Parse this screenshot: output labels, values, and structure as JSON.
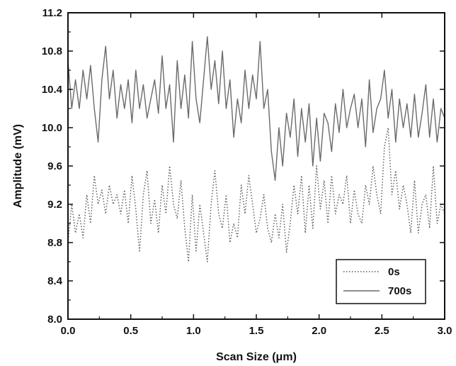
{
  "chart_data": {
    "type": "line",
    "title": "",
    "xlabel": "Scan Size (μm)",
    "ylabel": "Amplitude (mV)",
    "xlim": [
      0.0,
      3.0
    ],
    "ylim": [
      8.0,
      11.2
    ],
    "xticks": [
      "0.0",
      "0.5",
      "1.0",
      "1.5",
      "2.0",
      "2.5",
      "3.0"
    ],
    "yticks": [
      "8.0",
      "8.4",
      "8.8",
      "9.2",
      "9.6",
      "10.0",
      "10.4",
      "10.8",
      "11.2"
    ],
    "legend_position": "bottom-right",
    "grid": false,
    "colors": {
      "series_0s": "#555555",
      "series_700s": "#6a6a6a",
      "axis": "#111111"
    },
    "series": [
      {
        "name": "0s",
        "style": "dotted",
        "x": [
          0.0,
          0.03,
          0.06,
          0.09,
          0.12,
          0.15,
          0.18,
          0.21,
          0.24,
          0.27,
          0.3,
          0.33,
          0.36,
          0.39,
          0.42,
          0.45,
          0.48,
          0.51,
          0.54,
          0.57,
          0.6,
          0.63,
          0.66,
          0.69,
          0.72,
          0.75,
          0.78,
          0.81,
          0.84,
          0.87,
          0.9,
          0.93,
          0.96,
          0.99,
          1.02,
          1.05,
          1.08,
          1.11,
          1.14,
          1.17,
          1.2,
          1.23,
          1.26,
          1.29,
          1.32,
          1.35,
          1.38,
          1.41,
          1.44,
          1.47,
          1.5,
          1.53,
          1.56,
          1.59,
          1.62,
          1.65,
          1.68,
          1.71,
          1.74,
          1.77,
          1.8,
          1.83,
          1.86,
          1.89,
          1.92,
          1.95,
          1.98,
          2.01,
          2.04,
          2.07,
          2.1,
          2.13,
          2.16,
          2.19,
          2.22,
          2.25,
          2.28,
          2.31,
          2.34,
          2.37,
          2.4,
          2.43,
          2.46,
          2.49,
          2.52,
          2.55,
          2.58,
          2.61,
          2.64,
          2.67,
          2.7,
          2.73,
          2.76,
          2.79,
          2.82,
          2.85,
          2.88,
          2.91,
          2.94,
          2.97,
          3.0
        ],
        "y": [
          8.8,
          9.2,
          8.9,
          9.1,
          8.85,
          9.3,
          9.0,
          9.5,
          9.2,
          9.35,
          9.1,
          9.4,
          9.2,
          9.3,
          9.1,
          9.35,
          9.0,
          9.5,
          9.15,
          8.7,
          9.3,
          9.55,
          9.0,
          9.25,
          8.9,
          9.4,
          9.1,
          9.6,
          9.2,
          9.05,
          9.45,
          8.95,
          8.6,
          9.3,
          8.7,
          9.2,
          8.9,
          8.6,
          9.2,
          9.55,
          9.1,
          8.95,
          9.3,
          8.8,
          9.0,
          8.85,
          9.4,
          9.1,
          9.5,
          9.2,
          8.9,
          9.05,
          9.3,
          8.95,
          8.8,
          9.1,
          8.85,
          9.2,
          8.7,
          9.0,
          9.4,
          9.1,
          9.5,
          8.9,
          9.4,
          8.95,
          9.6,
          9.15,
          9.45,
          9.0,
          9.5,
          9.1,
          9.3,
          9.2,
          9.5,
          9.0,
          9.35,
          9.1,
          9.0,
          9.4,
          9.2,
          9.6,
          9.3,
          9.1,
          9.8,
          10.0,
          9.3,
          9.55,
          9.15,
          9.4,
          9.2,
          8.9,
          9.45,
          8.9,
          9.2,
          9.3,
          8.95,
          9.6,
          9.0,
          9.2,
          9.1
        ]
      },
      {
        "name": "700s",
        "style": "solid",
        "x": [
          0.0,
          0.03,
          0.06,
          0.09,
          0.12,
          0.15,
          0.18,
          0.21,
          0.24,
          0.27,
          0.3,
          0.33,
          0.36,
          0.39,
          0.42,
          0.45,
          0.48,
          0.51,
          0.54,
          0.57,
          0.6,
          0.63,
          0.66,
          0.69,
          0.72,
          0.75,
          0.78,
          0.81,
          0.84,
          0.87,
          0.9,
          0.93,
          0.96,
          0.99,
          1.02,
          1.05,
          1.08,
          1.11,
          1.14,
          1.17,
          1.2,
          1.23,
          1.26,
          1.29,
          1.32,
          1.35,
          1.38,
          1.41,
          1.44,
          1.47,
          1.5,
          1.53,
          1.56,
          1.59,
          1.62,
          1.65,
          1.68,
          1.71,
          1.74,
          1.77,
          1.8,
          1.83,
          1.86,
          1.89,
          1.92,
          1.95,
          1.98,
          2.01,
          2.04,
          2.07,
          2.1,
          2.13,
          2.16,
          2.19,
          2.22,
          2.25,
          2.28,
          2.31,
          2.34,
          2.37,
          2.4,
          2.43,
          2.46,
          2.49,
          2.52,
          2.55,
          2.58,
          2.61,
          2.64,
          2.67,
          2.7,
          2.73,
          2.76,
          2.79,
          2.82,
          2.85,
          2.88,
          2.91,
          2.94,
          2.97,
          3.0
        ],
        "y": [
          10.7,
          10.2,
          10.5,
          10.2,
          10.6,
          10.3,
          10.65,
          10.2,
          9.85,
          10.5,
          10.85,
          10.3,
          10.6,
          10.1,
          10.45,
          10.2,
          10.5,
          10.05,
          10.6,
          10.2,
          10.45,
          10.1,
          10.3,
          10.5,
          10.15,
          10.75,
          10.2,
          10.45,
          9.85,
          10.7,
          10.2,
          10.55,
          10.1,
          10.9,
          10.3,
          10.05,
          10.5,
          10.95,
          10.4,
          10.7,
          10.25,
          10.8,
          10.2,
          10.5,
          9.9,
          10.3,
          10.05,
          10.6,
          10.2,
          10.55,
          10.3,
          10.9,
          10.2,
          10.4,
          9.75,
          9.45,
          10.0,
          9.6,
          10.15,
          9.9,
          10.3,
          9.7,
          10.2,
          9.85,
          10.25,
          9.6,
          10.1,
          9.65,
          10.15,
          10.05,
          9.75,
          10.25,
          9.95,
          10.4,
          10.0,
          10.2,
          10.35,
          10.0,
          10.3,
          9.8,
          10.5,
          9.95,
          10.2,
          10.3,
          10.6,
          10.1,
          10.4,
          9.85,
          10.3,
          10.0,
          10.25,
          9.9,
          10.35,
          9.9,
          10.15,
          10.45,
          9.9,
          10.3,
          9.85,
          10.2,
          10.1
        ]
      }
    ]
  }
}
